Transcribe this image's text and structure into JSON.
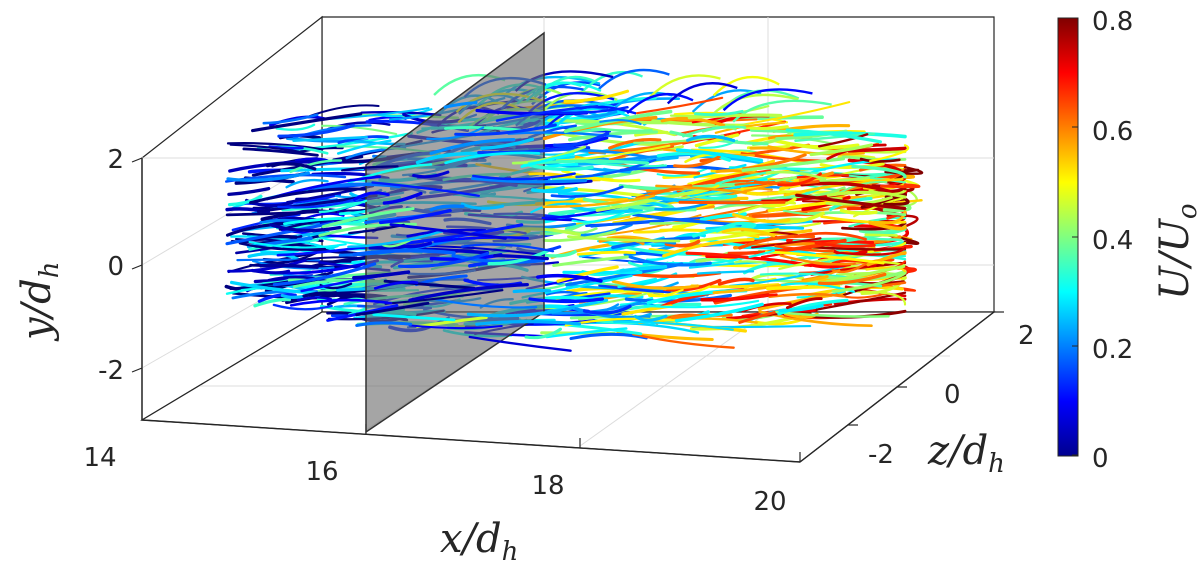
{
  "chart_data": {
    "type": "scatter",
    "subtype": "3d-pathlines",
    "axes": {
      "x": {
        "label_var": "x",
        "label_den": "d",
        "label_sub": "h",
        "ticks": [
          "14",
          "16",
          "18",
          "20"
        ],
        "range": [
          14,
          20
        ]
      },
      "y": {
        "label_var": "y",
        "label_den": "d",
        "label_sub": "h",
        "ticks": [
          "2",
          "0",
          "-2"
        ],
        "range": [
          -3,
          2.6
        ]
      },
      "z": {
        "label_var": "z",
        "label_den": "d",
        "label_sub": "h",
        "ticks": [
          "2",
          "0",
          "-2"
        ],
        "range": [
          -3,
          2.6
        ]
      }
    },
    "colorbar": {
      "label_num": "U",
      "label_den": "U",
      "label_sub": "o",
      "ticks": [
        "0.8",
        "0.6",
        "0.4",
        "0.2",
        "0"
      ],
      "range": [
        0,
        0.8
      ],
      "colormap": "jet"
    },
    "plane": {
      "x": 16,
      "color": "#7f7f7f",
      "opacity": 0.65
    },
    "grid": true,
    "colors": {
      "axis": "#262626",
      "grid": "#dcdcdc",
      "plane_edge": "#333333"
    }
  }
}
